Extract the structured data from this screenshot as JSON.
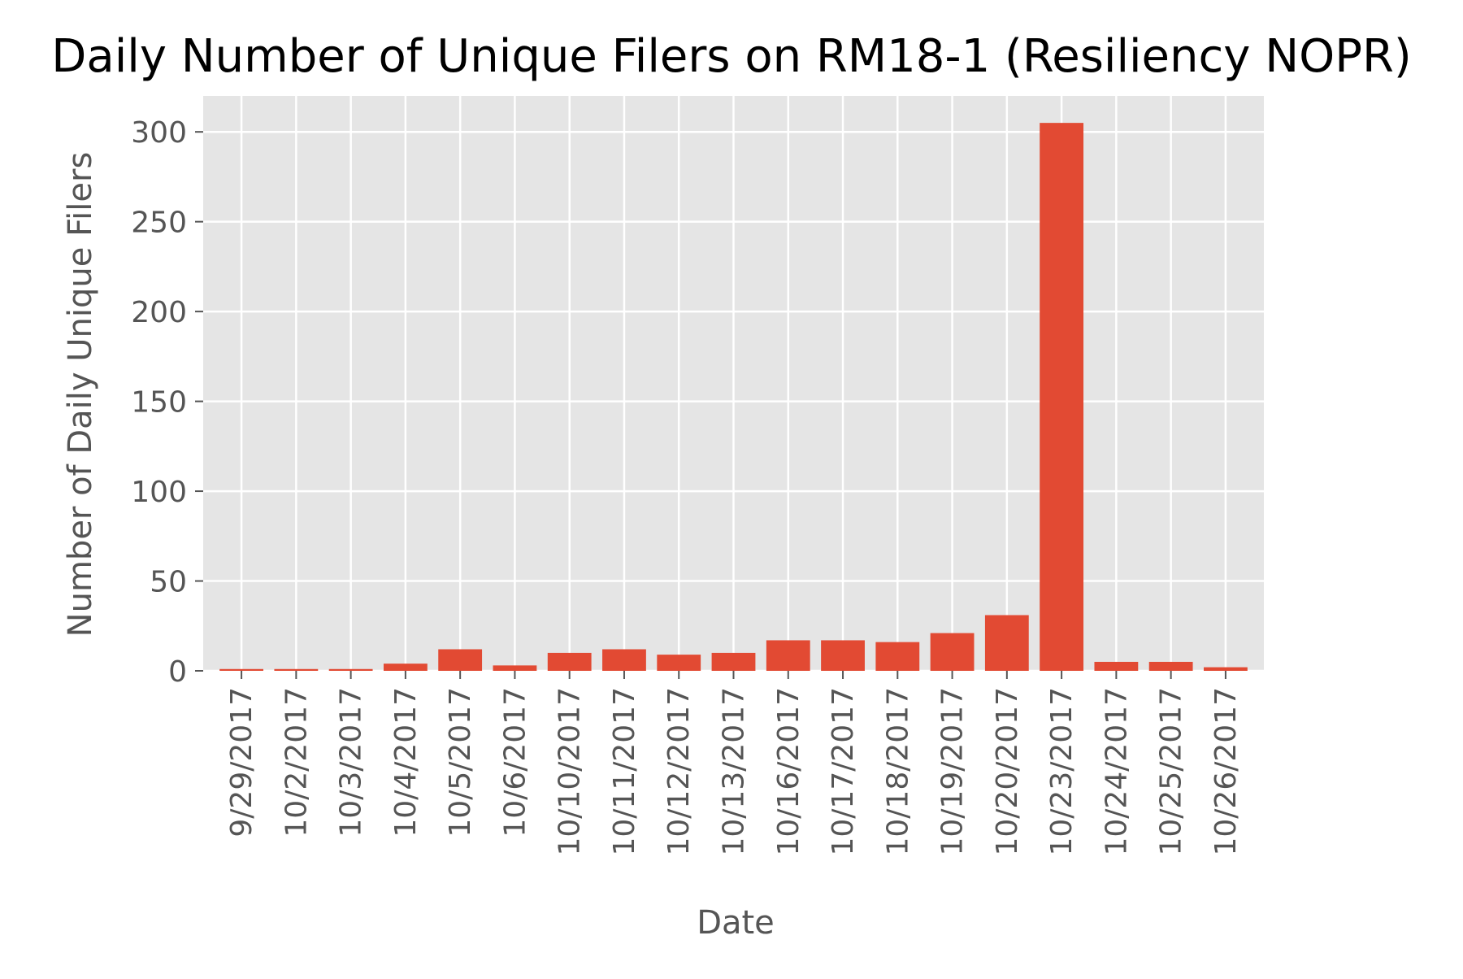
{
  "chart_data": {
    "type": "bar",
    "title": "Daily Number of Unique Filers on RM18-1 (Resiliency NOPR)",
    "xlabel": "Date",
    "ylabel": "Number of Daily Unique Filers",
    "categories": [
      "9/29/2017",
      "10/2/2017",
      "10/3/2017",
      "10/4/2017",
      "10/5/2017",
      "10/6/2017",
      "10/10/2017",
      "10/11/2017",
      "10/12/2017",
      "10/13/2017",
      "10/16/2017",
      "10/17/2017",
      "10/18/2017",
      "10/19/2017",
      "10/20/2017",
      "10/23/2017",
      "10/24/2017",
      "10/25/2017",
      "10/26/2017"
    ],
    "values": [
      1,
      1,
      1,
      4,
      12,
      3,
      10,
      12,
      9,
      10,
      17,
      17,
      16,
      21,
      31,
      305,
      5,
      5,
      2
    ],
    "yticks": [
      0,
      50,
      100,
      150,
      200,
      250,
      300
    ],
    "ylim": [
      0,
      320
    ],
    "grid": true,
    "colors": {
      "bar": "#E24A33",
      "plot_background": "#E5E5E5",
      "grid": "#FFFFFF",
      "tick_text": "#555555",
      "label_text": "#555555",
      "title_text": "#000000"
    }
  }
}
